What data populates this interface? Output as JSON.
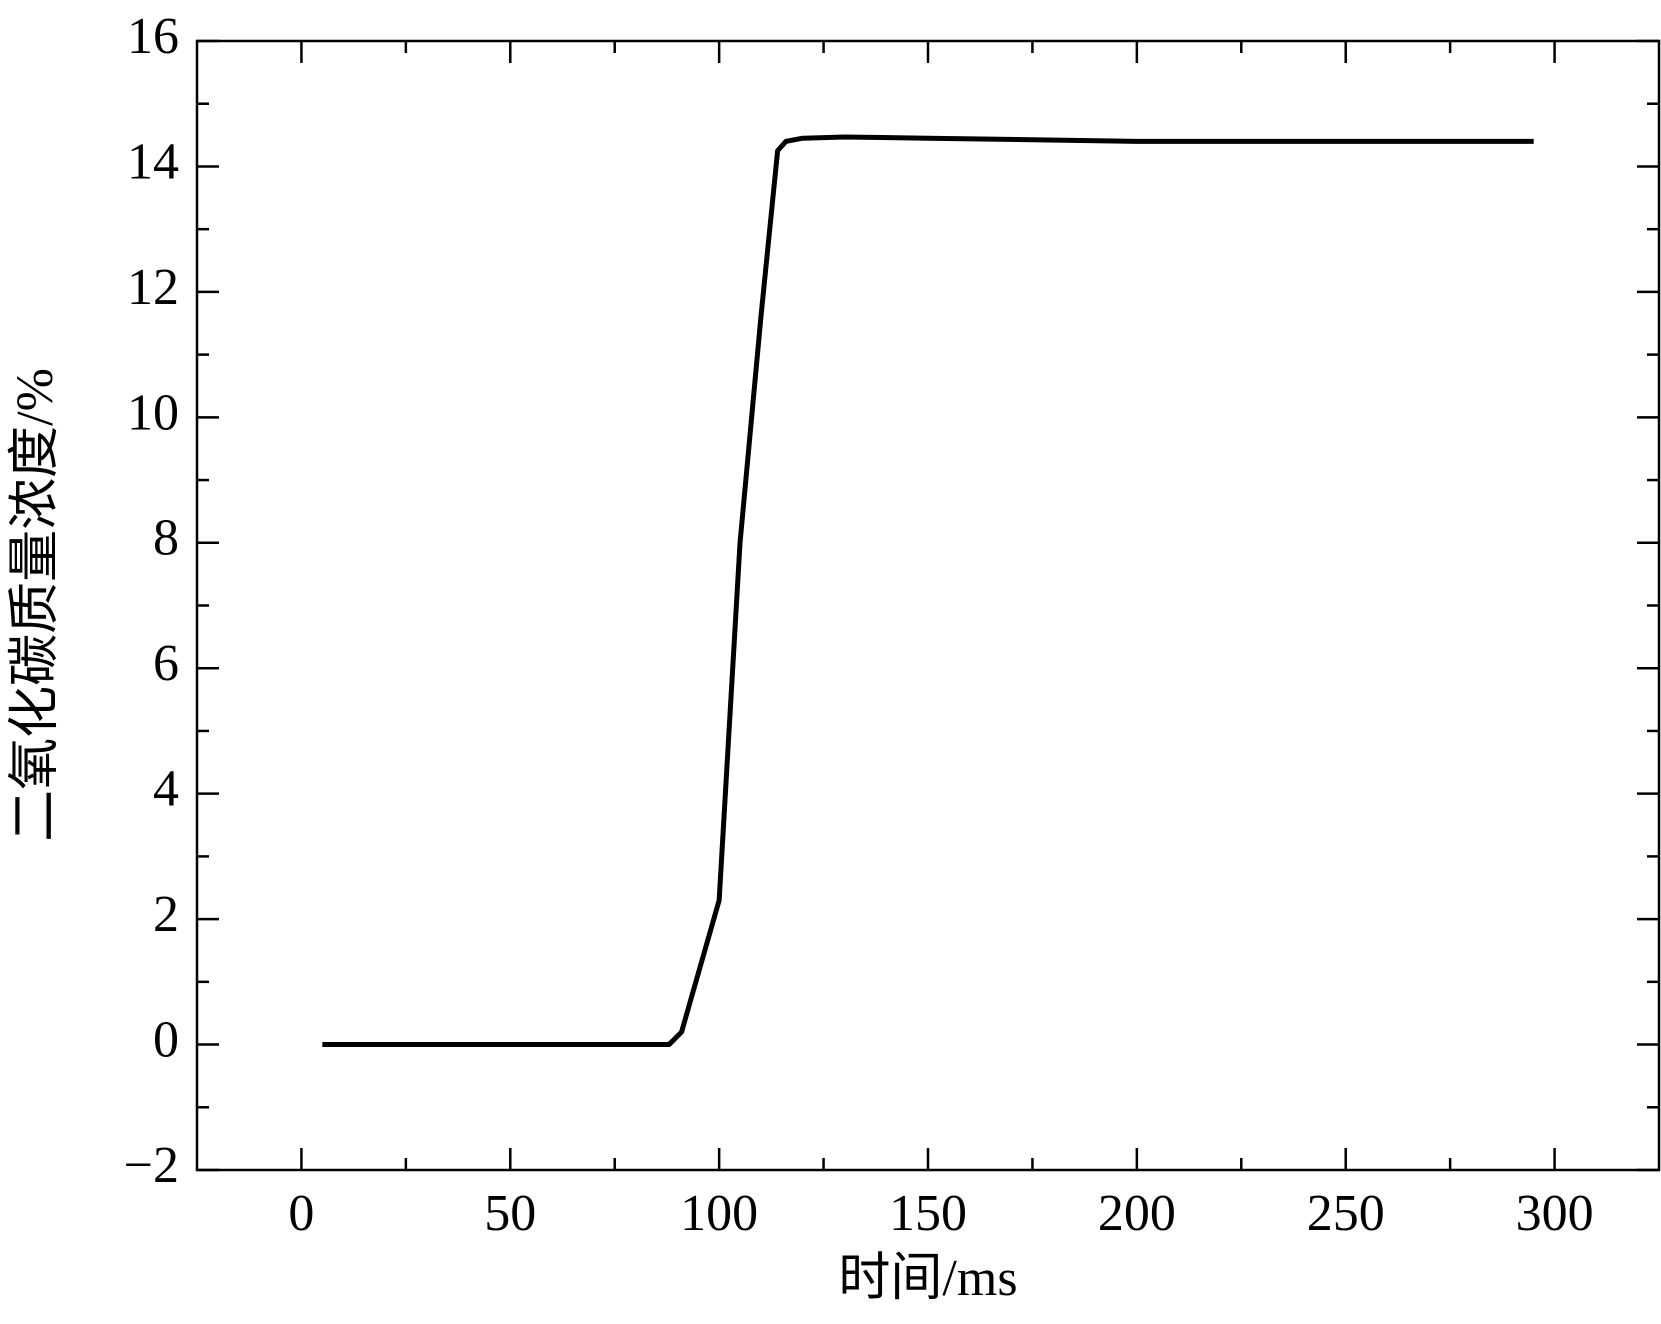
{
  "chart_data": {
    "type": "line",
    "x_label": "时间/ms",
    "y_label": "二氧化碳质量浓度/%",
    "x": [
      5,
      50,
      88,
      91,
      100,
      105,
      110,
      114,
      116,
      120,
      130,
      150,
      200,
      250,
      295
    ],
    "series": [
      {
        "color": "#000000",
        "values": [
          0,
          0,
          0,
          0.2,
          2.3,
          8,
          11.6,
          14.25,
          14.4,
          14.45,
          14.47,
          14.45,
          14.4,
          14.4,
          14.4
        ]
      }
    ],
    "xlim": [
      -25,
      325
    ],
    "xticks": [
      0,
      50,
      100,
      150,
      200,
      250,
      300
    ],
    "ylim": [
      -2,
      16
    ],
    "yticks": [
      {
        "value": -2,
        "label": "−2"
      },
      0,
      2,
      4,
      6,
      8,
      10,
      12,
      14,
      16
    ]
  }
}
